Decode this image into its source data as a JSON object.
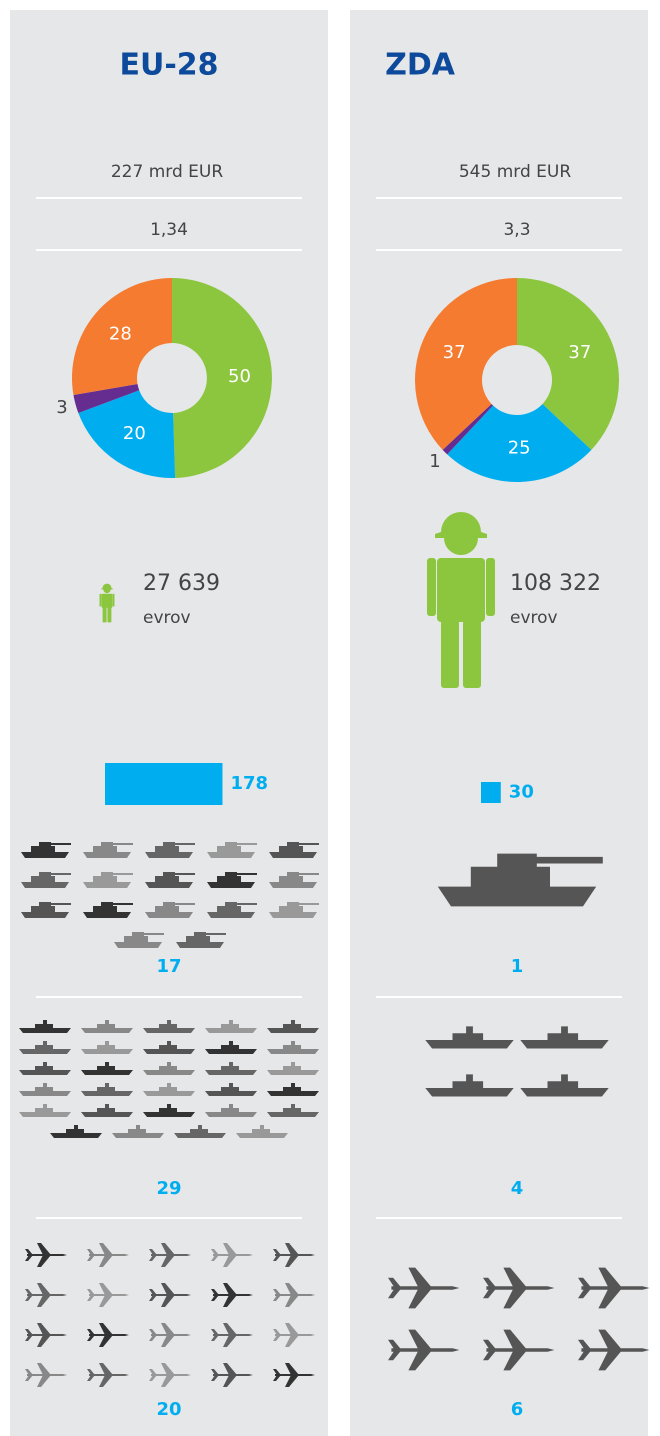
{
  "columns": [
    {
      "title": "EU-28",
      "spending": "227 mrd EUR",
      "gdp_share": "1,34",
      "pie": {
        "type": "pie",
        "values": [
          50,
          20,
          3,
          28
        ],
        "colors": [
          "#8cc63f",
          "#00aeef",
          "#662d91",
          "#f47b30"
        ]
      },
      "per_soldier": "27 639",
      "per_soldier_unit": "evrov",
      "bar": {
        "type": "bar",
        "value": 178,
        "color": "#00aeef"
      },
      "tanks": 17,
      "ships": 29,
      "aircraft": 20
    },
    {
      "title": "ZDA",
      "spending": "545 mrd EUR",
      "gdp_share": "3,3",
      "pie": {
        "type": "pie",
        "values": [
          37,
          25,
          1,
          37
        ],
        "colors": [
          "#8cc63f",
          "#00aeef",
          "#662d91",
          "#f47b30"
        ]
      },
      "per_soldier": "108 322",
      "per_soldier_unit": "evrov",
      "bar": {
        "type": "bar",
        "value": 30,
        "color": "#00aeef"
      },
      "tanks": 1,
      "ships": 4,
      "aircraft": 6
    }
  ]
}
